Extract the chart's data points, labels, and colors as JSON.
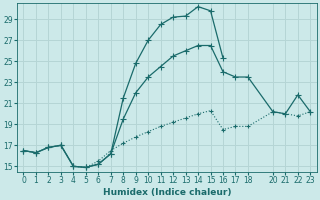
{
  "xlabel": "Humidex (Indice chaleur)",
  "xlim": [
    -0.5,
    23.5
  ],
  "ylim": [
    14.5,
    30.5
  ],
  "yticks": [
    15,
    17,
    19,
    21,
    23,
    25,
    27,
    29
  ],
  "xticks": [
    0,
    1,
    2,
    3,
    4,
    5,
    6,
    7,
    8,
    9,
    10,
    11,
    12,
    13,
    14,
    15,
    16,
    17,
    18,
    20,
    21,
    22,
    23
  ],
  "bg_color": "#cce9e9",
  "grid_color": "#b5d5d5",
  "line_color": "#1a6b6b",
  "tick_fontsize": 5.5,
  "xlabel_fontsize": 6.5,
  "curve1_x": [
    0,
    1,
    2,
    3,
    4,
    5,
    6,
    7,
    8,
    9,
    10,
    11,
    12,
    13,
    14,
    15,
    16
  ],
  "curve1_y": [
    16.5,
    16.3,
    16.8,
    17.0,
    15.0,
    14.9,
    15.2,
    16.2,
    21.5,
    24.8,
    27.0,
    28.5,
    29.2,
    29.3,
    30.2,
    29.8,
    25.3
  ],
  "curve2_x": [
    0,
    1,
    2,
    3,
    4,
    5,
    6,
    7,
    8,
    9,
    10,
    11,
    12,
    13,
    14,
    15,
    16,
    17,
    18,
    20,
    21,
    22,
    23
  ],
  "curve2_y": [
    16.5,
    16.3,
    16.8,
    17.0,
    15.0,
    14.9,
    15.2,
    16.2,
    19.5,
    22.0,
    23.5,
    24.5,
    25.5,
    26.0,
    26.5,
    26.5,
    24.0,
    23.5,
    23.5,
    20.2,
    20.0,
    21.8,
    20.2
  ],
  "curve3_x": [
    0,
    1,
    2,
    3,
    4,
    5,
    6,
    7,
    8,
    9,
    10,
    11,
    12,
    13,
    14,
    15,
    16,
    17,
    18,
    20,
    21,
    22,
    23
  ],
  "curve3_y": [
    16.5,
    16.3,
    16.8,
    17.0,
    15.0,
    14.9,
    15.5,
    16.5,
    17.2,
    17.8,
    18.3,
    18.8,
    19.2,
    19.6,
    20.0,
    20.3,
    18.5,
    18.8,
    18.8,
    20.2,
    20.0,
    19.8,
    20.2
  ]
}
